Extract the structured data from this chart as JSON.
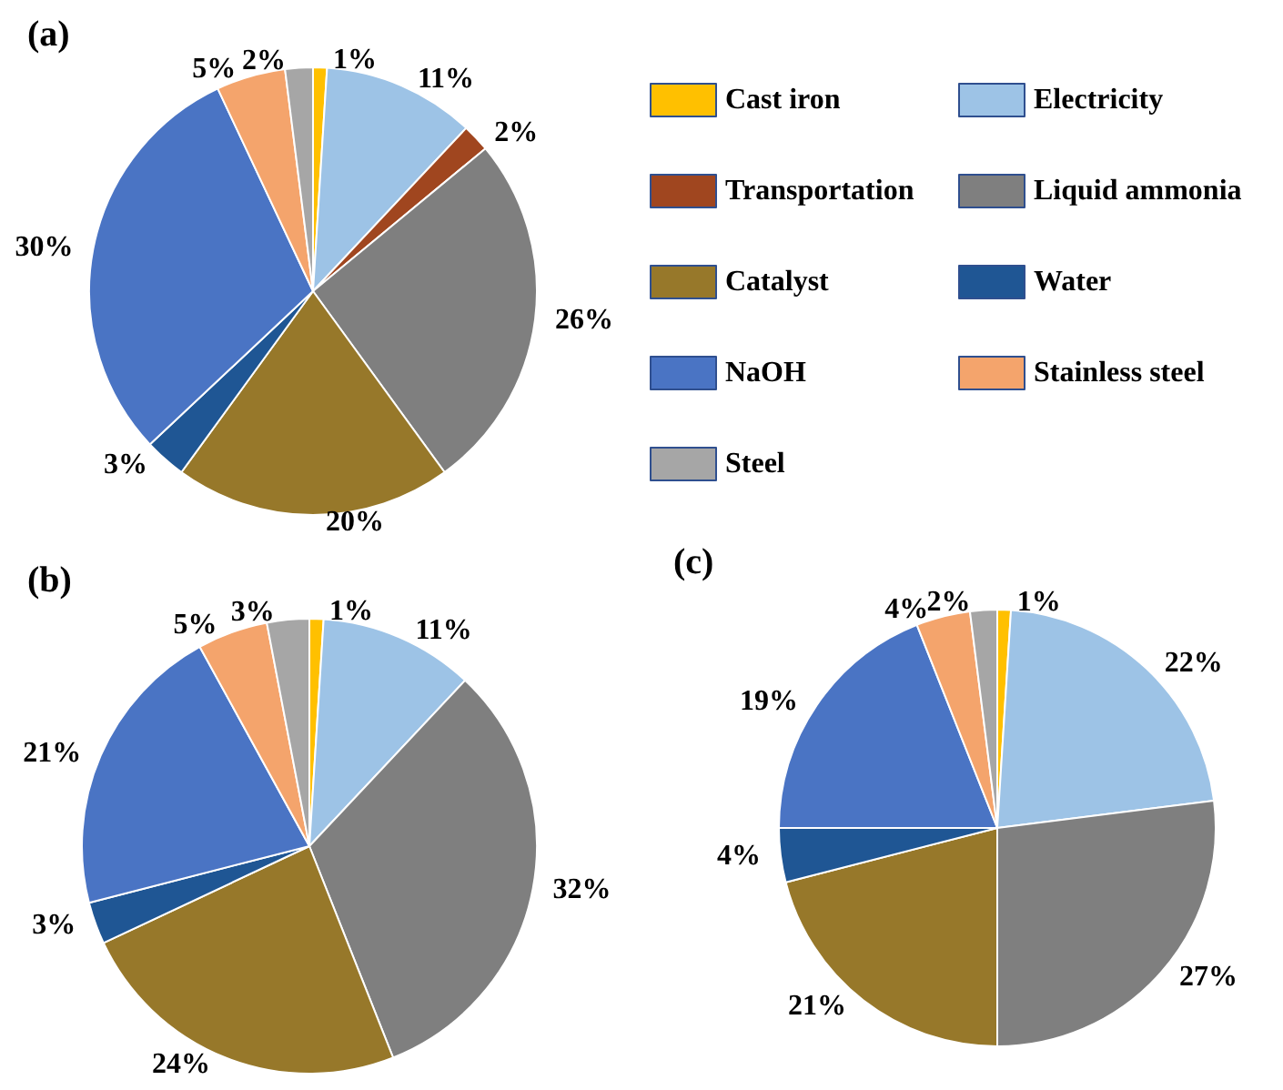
{
  "chart_data": [
    {
      "type": "pie",
      "title": "(a)",
      "legend": "right",
      "categories": [
        "Cast iron",
        "Electricity",
        "Transportation",
        "Liquid ammonia",
        "Catalyst",
        "Water",
        "NaOH",
        "Stainless steel",
        "Steel"
      ],
      "values": [
        1,
        11,
        2,
        26,
        20,
        3,
        30,
        5,
        2
      ],
      "value_labels": [
        "1%",
        "11%",
        "2%",
        "26%",
        "20%",
        "3%",
        "30%",
        "5%",
        "2%"
      ],
      "colors": [
        "#ffc000",
        "#9dc3e6",
        "#a0461f",
        "#7f7f7f",
        "#97782a",
        "#1f5694",
        "#4a74c4",
        "#f4a46c",
        "#a6a6a6"
      ]
    },
    {
      "type": "pie",
      "title": "(b)",
      "categories": [
        null,
        null,
        null,
        null,
        null,
        null,
        null,
        null
      ],
      "values": [
        1,
        11,
        32,
        24,
        3,
        21,
        5,
        3
      ],
      "value_labels": [
        "1%",
        "11%",
        "32%",
        "24%",
        "3%",
        "21%",
        "5%",
        "3%"
      ],
      "colors": [
        "#ffc000",
        "#9dc3e6",
        "#7f7f7f",
        "#97782a",
        "#1f5694",
        "#4a74c4",
        "#f4a46c",
        "#a6a6a6"
      ]
    },
    {
      "type": "pie",
      "title": "(c)",
      "categories": [
        null,
        null,
        null,
        null,
        null,
        null,
        null,
        null
      ],
      "values": [
        1,
        22,
        27,
        21,
        4,
        19,
        4,
        2
      ],
      "value_labels": [
        "1%",
        "22%",
        "27%",
        "21%",
        "4%",
        "19%",
        "4%",
        "2%"
      ],
      "colors": [
        "#ffc000",
        "#9dc3e6",
        "#7f7f7f",
        "#97782a",
        "#1f5694",
        "#4a74c4",
        "#f4a46c",
        "#a6a6a6"
      ]
    }
  ]
}
